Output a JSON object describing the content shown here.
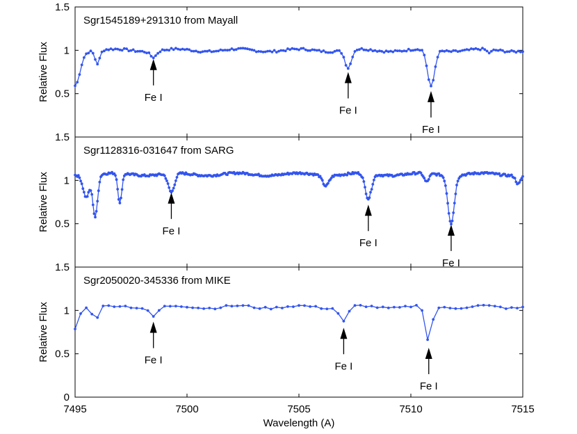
{
  "figure": {
    "xlabel": "Wavelength (A)",
    "xticks": [
      "7495",
      "7500",
      "7505",
      "7510",
      "7515"
    ],
    "line_color": "#3355ee"
  },
  "chart_data": [
    {
      "type": "line",
      "title": "Sgr1545189+291310 from Mayall",
      "ylabel": "Relative Flux",
      "xlim": [
        7495,
        7515
      ],
      "ylim": [
        0,
        1.5
      ],
      "yticks": [
        "1.5",
        "1",
        "0.5"
      ],
      "step": 0.1,
      "continuum": 1.0,
      "lines": [
        {
          "center": 7495.0,
          "depth": 0.4,
          "width": 0.3
        },
        {
          "center": 7496.0,
          "depth": 0.15,
          "width": 0.15
        },
        {
          "center": 7498.5,
          "depth": 0.07,
          "width": 0.2
        },
        {
          "center": 7507.2,
          "depth": 0.21,
          "width": 0.2
        },
        {
          "center": 7510.9,
          "depth": 0.43,
          "width": 0.22
        },
        {
          "center": 7513.5,
          "depth": 0.04,
          "width": 0.15
        }
      ],
      "annotations": [
        {
          "label": "Fe I",
          "x": 7498.5,
          "y_tip": 0.9
        },
        {
          "label": "Fe I",
          "x": 7507.2,
          "y_tip": 0.75
        },
        {
          "label": "Fe I",
          "x": 7510.9,
          "y_tip": 0.53
        }
      ]
    },
    {
      "type": "line",
      "title": "Sgr1128316-031647 from SARG",
      "ylabel": "Relative Flux",
      "xlim": [
        7495,
        7515
      ],
      "ylim": [
        0,
        1.5
      ],
      "yticks": [
        "1.5",
        "1",
        "0.5"
      ],
      "step": 0.05,
      "continuum": 1.07,
      "lines": [
        {
          "center": 7495.5,
          "depth": 0.25,
          "width": 0.2
        },
        {
          "center": 7495.9,
          "depth": 0.48,
          "width": 0.15
        },
        {
          "center": 7497.0,
          "depth": 0.35,
          "width": 0.12
        },
        {
          "center": 7499.3,
          "depth": 0.22,
          "width": 0.2
        },
        {
          "center": 7506.2,
          "depth": 0.12,
          "width": 0.2
        },
        {
          "center": 7508.1,
          "depth": 0.29,
          "width": 0.2
        },
        {
          "center": 7510.7,
          "depth": 0.1,
          "width": 0.15
        },
        {
          "center": 7511.8,
          "depth": 0.55,
          "width": 0.2
        },
        {
          "center": 7514.8,
          "depth": 0.1,
          "width": 0.15
        }
      ],
      "annotations": [
        {
          "label": "Fe I",
          "x": 7499.3,
          "y_tip": 0.86
        },
        {
          "label": "Fe I",
          "x": 7508.1,
          "y_tip": 0.72
        },
        {
          "label": "Fe I",
          "x": 7511.8,
          "y_tip": 0.49
        }
      ]
    },
    {
      "type": "line",
      "title": "Sgr2050020-345336 from MIKE",
      "ylabel": "Relative Flux",
      "xlim": [
        7495,
        7515
      ],
      "ylim": [
        0,
        1.5
      ],
      "yticks": [
        "1.5",
        "1",
        "0.5",
        "0"
      ],
      "step": 0.25,
      "continuum": 1.04,
      "lines": [
        {
          "center": 7495.0,
          "depth": 0.25,
          "width": 0.2
        },
        {
          "center": 7495.9,
          "depth": 0.17,
          "width": 0.15
        },
        {
          "center": 7498.5,
          "depth": 0.1,
          "width": 0.25
        },
        {
          "center": 7507.0,
          "depth": 0.17,
          "width": 0.25
        },
        {
          "center": 7510.8,
          "depth": 0.41,
          "width": 0.2
        }
      ],
      "annotations": [
        {
          "label": "Fe I",
          "x": 7498.5,
          "y_tip": 0.87
        },
        {
          "label": "Fe I",
          "x": 7507.0,
          "y_tip": 0.8
        },
        {
          "label": "Fe I",
          "x": 7510.8,
          "y_tip": 0.57
        }
      ]
    }
  ]
}
